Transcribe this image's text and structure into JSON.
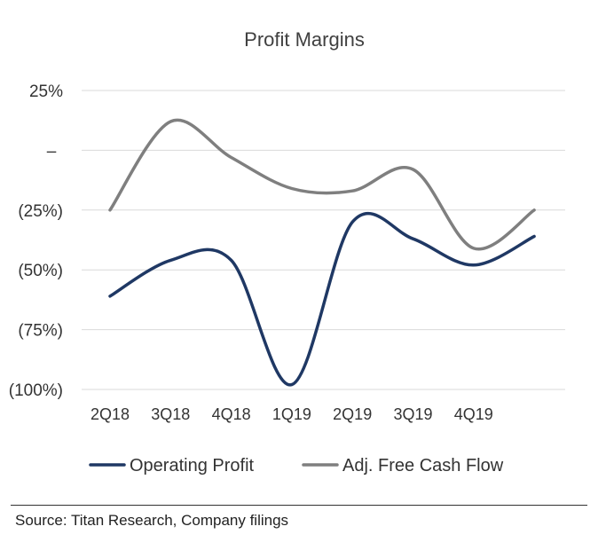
{
  "chart_data": {
    "type": "line",
    "title": "Profit Margins",
    "xlabel": "",
    "ylabel": "",
    "categories": [
      "2Q18",
      "3Q18",
      "4Q18",
      "1Q19",
      "2Q19",
      "3Q19",
      "4Q19",
      ""
    ],
    "y_tick_labels": [
      "25%",
      "–",
      "(25%)",
      "(50%)",
      "(75%)",
      "(100%)"
    ],
    "y_ticks": [
      25,
      0,
      -25,
      -50,
      -75,
      -100
    ],
    "ylim": [
      -100,
      25
    ],
    "grid": true,
    "legend_position": "bottom",
    "series": [
      {
        "name": "Operating Profit",
        "color": "#1f3864",
        "values": [
          -61,
          -46,
          -46,
          -98,
          -30,
          -37,
          -48,
          -36
        ]
      },
      {
        "name": "Adj. Free Cash Flow",
        "color": "#7f7f7f",
        "values": [
          -25,
          12,
          -3,
          -16,
          -17,
          -8,
          -41,
          -25
        ]
      }
    ]
  },
  "footer": {
    "source": "Source: Titan Research, Company filings"
  }
}
